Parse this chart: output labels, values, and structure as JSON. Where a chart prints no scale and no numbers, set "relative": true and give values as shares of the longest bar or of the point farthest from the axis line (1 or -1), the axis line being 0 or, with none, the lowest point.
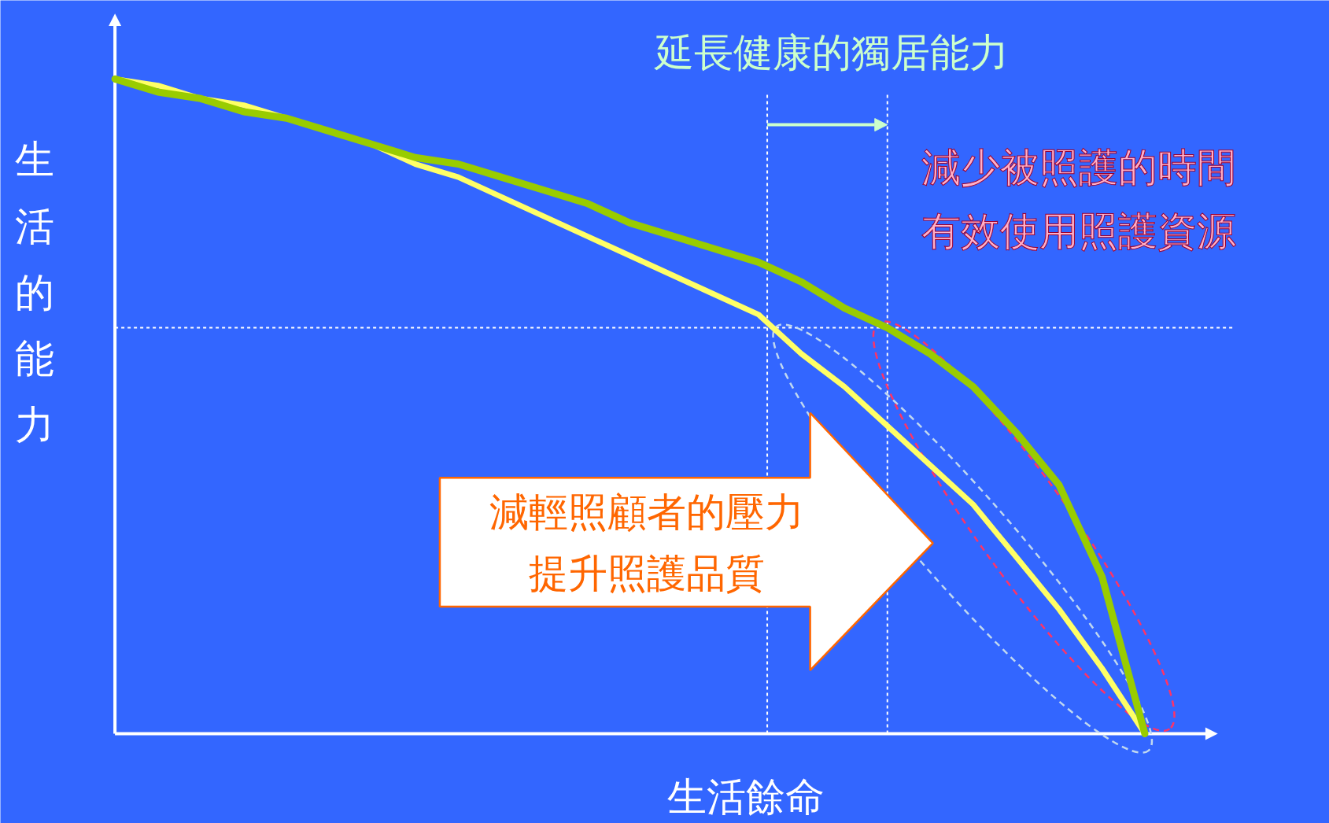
{
  "chart_data": {
    "type": "line",
    "title": "延長健康的獨居能力",
    "xlabel": "生活餘命",
    "ylabel": "生活的能力",
    "relative": true,
    "marker": "none",
    "line_style": "solid",
    "categories": [
      null,
      null,
      null,
      null,
      null,
      null,
      null,
      null,
      null,
      null,
      null,
      null,
      null,
      null,
      null,
      null,
      null,
      null,
      null,
      null,
      null,
      null,
      null,
      null,
      null
    ],
    "series": [
      {
        "color": "#99cc00",
        "values": [
          1.0,
          0.98,
          0.97,
          0.95,
          0.94,
          0.92,
          0.9,
          0.88,
          0.87,
          0.85,
          0.83,
          0.81,
          0.78,
          0.76,
          0.74,
          0.72,
          0.69,
          0.65,
          0.62,
          0.58,
          0.53,
          0.46,
          0.38,
          0.24,
          0
        ]
      },
      {
        "color": "#ffff66",
        "values": [
          1.0,
          0.99,
          0.97,
          0.96,
          0.94,
          0.92,
          0.9,
          0.87,
          0.85,
          0.82,
          0.79,
          0.76,
          0.73,
          0.7,
          0.67,
          0.64,
          0.58,
          0.53,
          0.47,
          0.41,
          0.35,
          0.27,
          0.19,
          0.1,
          0
        ]
      }
    ],
    "ref_lines": [
      {
        "axis": "y",
        "value": 0.62,
        "color": "#ffffff",
        "line_style": "dashed"
      }
    ],
    "annotations": [
      "減少被照護的時間有效使用照護資源",
      "減輕照顧者的壓力提升照護品質"
    ]
  }
}
